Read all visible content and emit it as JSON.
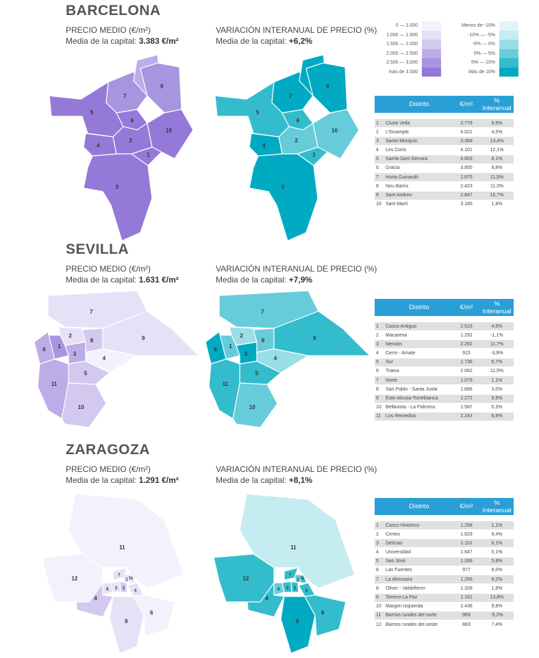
{
  "colors": {
    "price": [
      "#f3f1fb",
      "#e6e1f7",
      "#d2c8f0",
      "#bcade8",
      "#a795e0",
      "#9479d8"
    ],
    "variation": [
      "#e0f5f8",
      "#c5ecf1",
      "#99dde6",
      "#66ccd9",
      "#33bccc",
      "#00aac2"
    ],
    "table_header": "#2a9fd6"
  },
  "legend": {
    "price": [
      "0 — 1.000",
      "1.000 — 1.500",
      "1.500 — 2.000",
      "2.000 — 2.500",
      "2.500 — 3.000",
      "más de 3.000"
    ],
    "variation": [
      "Menos de -10%",
      "-10% — -5%",
      "-5% — 0%",
      "0% — 5%",
      "5% — 10%",
      "Más de 10%"
    ]
  },
  "table_headers": {
    "district": "Distrito",
    "price": "€/m²",
    "variation": "% Interanual"
  },
  "cities": [
    {
      "name": "BARCELONA",
      "price_label": "PRECIO MEDIO (€/m²)",
      "price_avg_prefix": "Media de la capital: ",
      "price_avg": "3.383 €/m²",
      "var_label": "VARIACIÓN INTERANUAL DE PRECIO (%)",
      "var_avg_prefix": "Media de la capital: ",
      "var_avg": "+6,2%",
      "districts": [
        [
          "1",
          "Ciutat Vella",
          "3.779",
          "9,9%"
        ],
        [
          "2",
          "L'Eixample",
          "4.021",
          "4,5%"
        ],
        [
          "3",
          "Sants-Montjuïc",
          "3.368",
          "13,4%"
        ],
        [
          "4",
          "Les Corts",
          "4.101",
          "12,1%"
        ],
        [
          "5",
          "Sarrià-Sant Gervasi",
          "4.603",
          "8,1%"
        ],
        [
          "6",
          "Gràcia",
          "3.855",
          "9,8%"
        ],
        [
          "7",
          "Horta Guinardó",
          "2.875",
          "11,5%"
        ],
        [
          "8",
          "Nou Barris",
          "2.423",
          "11,3%"
        ],
        [
          "9",
          "Sant Andreu",
          "2.847",
          "15,7%"
        ],
        [
          "10",
          "Sant Martí",
          "3.185",
          "1,8%"
        ]
      ]
    },
    {
      "name": "SEVILLA",
      "price_label": "PRECIO MEDIO (€/m²)",
      "price_avg_prefix": "Media de la capital: ",
      "price_avg": "1.631 €/m²",
      "var_label": "VARIACIÓN INTERANUAL DE PRECIO (%)",
      "var_avg_prefix": "Media de la capital: ",
      "var_avg": "+7,9%",
      "districts": [
        [
          "1",
          "Casco Antiguo",
          "2.516",
          "4,6%"
        ],
        [
          "2",
          "Macarena",
          "1.292",
          "-1,1%"
        ],
        [
          "3",
          "Nervión",
          "2.262",
          "11,7%"
        ],
        [
          "4",
          "Cerro - Amate",
          "915",
          "-3,9%"
        ],
        [
          "5",
          "Sur",
          "1.736",
          "6,7%"
        ],
        [
          "6",
          "Triana",
          "2.062",
          "11,5%"
        ],
        [
          "7",
          "Norte",
          "1.073",
          "1,1%"
        ],
        [
          "8",
          "San Pablo - Santa Justa",
          "1.666",
          "3,0%"
        ],
        [
          "9",
          "Este-Alcosa-Torreblanca",
          "1.272",
          "9,6%"
        ],
        [
          "10",
          "Bellavista - La Palmera",
          "1.587",
          "0,3%"
        ],
        [
          "11",
          "Los Remedios",
          "2.243",
          "6,8%"
        ]
      ]
    },
    {
      "name": "ZARAGOZA",
      "price_label": "PRECIO MEDIO (€/m²)",
      "price_avg_prefix": "Media de la capital: ",
      "price_avg": "1.291 €/m²",
      "var_label": "VARIACIÓN INTERANUAL DE PRECIO (%)",
      "var_avg_prefix": "Media de la capital: ",
      "var_avg": "+8,1%",
      "districts": [
        [
          "1",
          "Casco Histórico",
          "1.298",
          "1,1%"
        ],
        [
          "2",
          "Centro",
          "1.829",
          "9,4%"
        ],
        [
          "3",
          "Delicias",
          "1.110",
          "8,1%"
        ],
        [
          "4",
          "Universidad",
          "1.647",
          "5,1%"
        ],
        [
          "5",
          "San José",
          "1.289",
          "5,8%"
        ],
        [
          "6",
          "Las Fuentes",
          "977",
          "8,0%"
        ],
        [
          "7",
          "La Almozara",
          "1.256",
          "9,2%"
        ],
        [
          "8",
          "Oliver - Valdefierro",
          "1.328",
          "1,9%"
        ],
        [
          "9",
          "Torrero-La Paz",
          "1.161",
          "13,8%"
        ],
        [
          "10",
          "Margen Izquierda",
          "1.438",
          "9,8%"
        ],
        [
          "11",
          "Barrios rurales del norte",
          "969",
          "-9,2%"
        ],
        [
          "12",
          "Barrios rurales del oeste",
          "883",
          "7,4%"
        ]
      ]
    }
  ]
}
